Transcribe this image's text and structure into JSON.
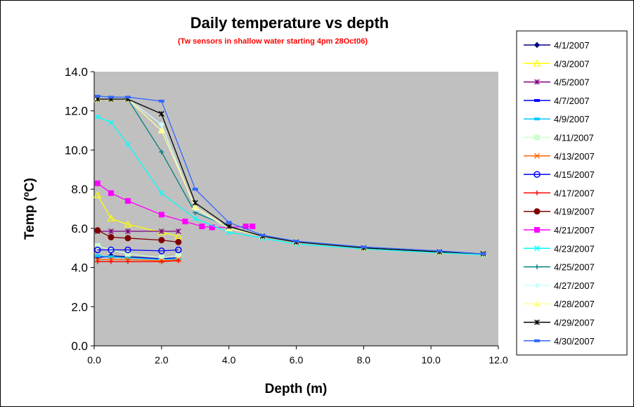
{
  "colors": {
    "background": "#ffffff",
    "plot_area": "#c0c0c0",
    "frame": "#000000",
    "subtitle": "#ff0000"
  },
  "chart_data": {
    "type": "line",
    "title": "Daily temperature vs depth",
    "subtitle": "(Tw sensors in shallow water starting 4pm 28Oct06)",
    "xlabel": "Depth (m)",
    "ylabel": "Temp (ºC)",
    "xlim": [
      0,
      12
    ],
    "ylim": [
      0,
      14
    ],
    "x_ticks": [
      "0.0",
      "2.0",
      "4.0",
      "6.0",
      "8.0",
      "10.0",
      "12.0"
    ],
    "y_ticks": [
      "0.0",
      "2.0",
      "4.0",
      "6.0",
      "8.0",
      "10.0",
      "12.0",
      "14.0"
    ],
    "grid": false,
    "legend_position": "right",
    "series": [
      {
        "name": "4/1/2007",
        "color": "#000080",
        "marker": "diamond",
        "x": [
          0.1,
          0.5,
          1.0,
          2.0,
          2.5
        ],
        "y": [
          4.5,
          4.6,
          4.55,
          4.45,
          4.5
        ]
      },
      {
        "name": "4/3/2007",
        "color": "#ffff00",
        "marker": "triangle-open",
        "x": [
          0.1,
          0.5,
          1.0,
          2.0,
          2.5
        ],
        "y": [
          7.7,
          6.5,
          6.2,
          5.8,
          5.6
        ]
      },
      {
        "name": "4/5/2007",
        "color": "#800080",
        "marker": "star",
        "x": [
          0.1,
          0.5,
          1.0,
          2.0,
          2.5
        ],
        "y": [
          5.85,
          5.85,
          5.85,
          5.85,
          5.85
        ]
      },
      {
        "name": "4/7/2007",
        "color": "#0000ff",
        "marker": "dash",
        "x": [
          0.1,
          0.5,
          1.0,
          2.0,
          2.5
        ],
        "y": [
          4.55,
          4.55,
          4.5,
          4.45,
          4.5
        ]
      },
      {
        "name": "4/9/2007",
        "color": "#00ccff",
        "marker": "dash",
        "x": [
          0.1,
          0.5,
          1.0,
          2.0,
          2.5
        ],
        "y": [
          4.6,
          4.55,
          4.5,
          4.4,
          4.45
        ]
      },
      {
        "name": "4/11/2007",
        "color": "#ccffcc",
        "marker": "square",
        "x": [
          0.1,
          0.5,
          1.0,
          2.0,
          2.5
        ],
        "y": [
          5.1,
          4.9,
          4.7,
          4.5,
          4.6
        ]
      },
      {
        "name": "4/13/2007",
        "color": "#ff6600",
        "marker": "x",
        "x": [
          0.1,
          0.5,
          1.0,
          2.0,
          2.5
        ],
        "y": [
          4.4,
          4.4,
          4.4,
          4.35,
          4.4
        ]
      },
      {
        "name": "4/15/2007",
        "color": "#0000ff",
        "marker": "circle-open",
        "x": [
          0.1,
          0.5,
          1.0,
          2.0,
          2.5
        ],
        "y": [
          4.9,
          4.9,
          4.9,
          4.85,
          4.9
        ]
      },
      {
        "name": "4/17/2007",
        "color": "#ff0000",
        "marker": "plus",
        "x": [
          0.1,
          0.5,
          1.0,
          2.0,
          2.5
        ],
        "y": [
          4.3,
          4.3,
          4.3,
          4.3,
          4.35
        ]
      },
      {
        "name": "4/19/2007",
        "color": "#800000",
        "marker": "circle",
        "x": [
          0.1,
          0.5,
          1.0,
          2.0,
          2.5
        ],
        "y": [
          5.9,
          5.55,
          5.5,
          5.4,
          5.3
        ]
      },
      {
        "name": "4/21/2007",
        "color": "#ff00ff",
        "marker": "square",
        "x": [
          0.1,
          0.5,
          1.0,
          2.0,
          2.7,
          3.2,
          3.5,
          4.0,
          4.5,
          4.7
        ],
        "y": [
          8.3,
          7.8,
          7.4,
          6.7,
          6.35,
          6.1,
          6.05,
          6.05,
          6.1,
          6.1
        ]
      },
      {
        "name": "4/23/2007",
        "color": "#00ffff",
        "marker": "x",
        "x": [
          0.1,
          0.5,
          1.0,
          2.0,
          3.0,
          4.0,
          5.0,
          6.0,
          8.0,
          10.25,
          11.55
        ],
        "y": [
          11.7,
          11.4,
          10.3,
          7.8,
          6.5,
          5.8,
          5.5,
          5.2,
          4.95,
          4.75,
          4.65
        ]
      },
      {
        "name": "4/25/2007",
        "color": "#008080",
        "marker": "plus",
        "x": [
          0.1,
          0.5,
          1.0,
          2.0,
          3.0,
          4.0,
          5.0,
          6.0,
          8.0,
          10.25,
          11.55
        ],
        "y": [
          12.6,
          12.6,
          12.6,
          9.9,
          6.8,
          6.1,
          5.6,
          5.3,
          5.0,
          4.8,
          4.7
        ]
      },
      {
        "name": "4/27/2007",
        "color": "#ccffff",
        "marker": "diamond",
        "x": [
          0.1,
          0.5,
          1.0,
          2.0,
          3.0,
          4.0,
          5.0,
          6.0,
          8.0,
          10.25,
          11.55
        ],
        "y": [
          12.6,
          12.6,
          12.6,
          11.3,
          7.0,
          6.0,
          5.6,
          5.3,
          5.0,
          4.8,
          4.7
        ]
      },
      {
        "name": "4/28/2007",
        "color": "#ffff99",
        "marker": "triangle",
        "x": [
          0.1,
          0.5,
          1.0,
          2.0,
          3.0,
          4.0,
          5.0,
          6.0,
          8.0,
          10.25,
          11.55
        ],
        "y": [
          12.6,
          12.6,
          12.6,
          11.0,
          7.1,
          6.0,
          5.6,
          5.3,
          5.0,
          4.8,
          4.7
        ]
      },
      {
        "name": "4/29/2007",
        "color": "#000000",
        "marker": "star",
        "x": [
          0.1,
          0.5,
          1.0,
          2.0,
          3.0,
          4.0,
          5.0,
          6.0,
          8.0,
          10.25,
          11.55
        ],
        "y": [
          12.6,
          12.6,
          12.6,
          11.85,
          7.3,
          6.1,
          5.6,
          5.3,
          5.0,
          4.8,
          4.7
        ]
      },
      {
        "name": "4/30/2007",
        "color": "#3366ff",
        "marker": "dash",
        "x": [
          0.1,
          0.5,
          1.0,
          2.0,
          3.0,
          4.0,
          5.0,
          6.0,
          8.0,
          10.25,
          11.55
        ],
        "y": [
          12.75,
          12.7,
          12.7,
          12.5,
          8.0,
          6.3,
          5.65,
          5.35,
          5.05,
          4.85,
          4.7
        ]
      }
    ]
  }
}
